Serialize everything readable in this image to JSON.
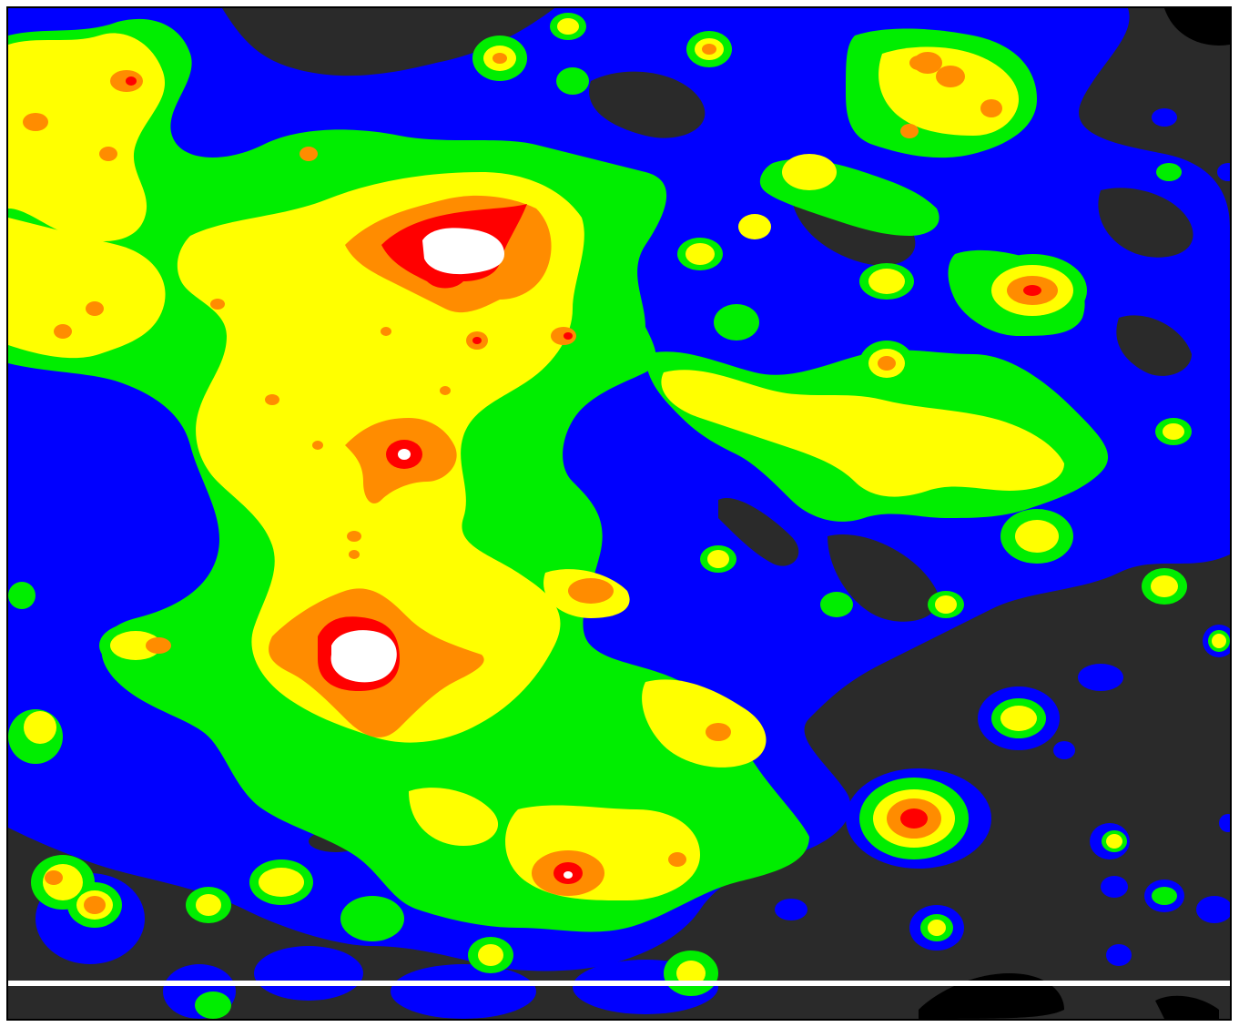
{
  "map": {
    "type": "light-pollution-contour-map",
    "palette": {
      "background": "#2a2a2a",
      "level_1": "#0000ff",
      "level_2": "#00ee00",
      "level_3": "#ffff00",
      "level_4": "#ff8c00",
      "level_5": "#ff0000",
      "level_6": "#ffffff",
      "line": "#ffffff",
      "frame": "#000000"
    },
    "features": {
      "horizontal_white_line": true,
      "black_voids": true
    }
  }
}
